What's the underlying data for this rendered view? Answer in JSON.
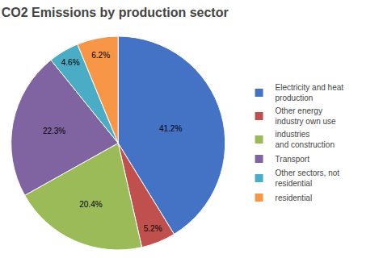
{
  "chart_data": {
    "type": "pie",
    "title": "CO2 Emissions by production sector",
    "categories": [
      "Electricity and heat\nproduction",
      "Other energy\nindustry own use",
      "industries\nand construction",
      "Transport",
      "Other sectors, not\nresidential",
      "residential"
    ],
    "values": [
      41.2,
      5.2,
      20.4,
      22.3,
      4.6,
      6.2
    ],
    "value_labels": [
      "41.2%",
      "5.2%",
      "20.4%",
      "22.3%",
      "4.6%",
      "6.2%"
    ],
    "colors": [
      "#4472C4",
      "#C0504D",
      "#9BBB59",
      "#8064A2",
      "#4BACC6",
      "#F79646"
    ],
    "data_labels": true,
    "legend": "right"
  }
}
